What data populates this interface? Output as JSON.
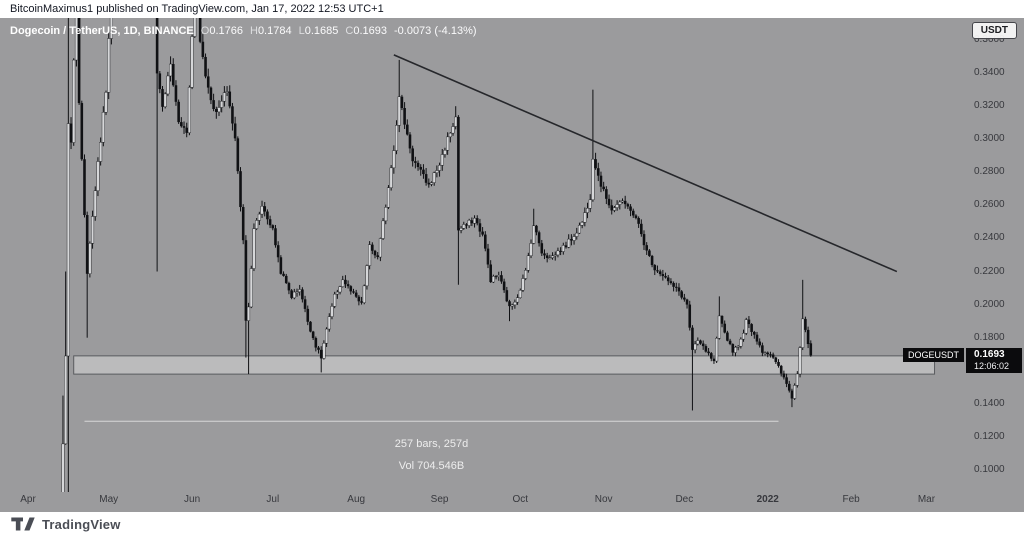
{
  "header": {
    "byline": "BitcoinMaximus1 published on TradingView.com, Jan 17, 2022 12:53 UTC+1"
  },
  "legend": {
    "title": "Dogecoin / TetherUS, 1D, BINANCE",
    "open_label": "O",
    "open": "0.1766",
    "high_label": "H",
    "high": "0.1784",
    "low_label": "L",
    "low": "0.1685",
    "close_label": "C",
    "close": "0.1693",
    "change": "-0.0073 (-4.13%)"
  },
  "price_axis": {
    "currency_label": "USDT",
    "symbol_tag": "DOGEUSDT",
    "last_price": "0.1693",
    "countdown": "12:06:02"
  },
  "annotations": {
    "bars": "257 bars, 257d",
    "volume": "Vol 704.546B"
  },
  "footer": {
    "brand": "TradingView"
  },
  "chart_data": {
    "type": "candlestick",
    "title": "Dogecoin / TetherUS, 1D, BINANCE",
    "pair": "DOGE/USDT",
    "interval": "1D",
    "exchange": "BINANCE",
    "current_bar": {
      "open": 0.1766,
      "high": 0.1784,
      "low": 0.1685,
      "close": 0.1693,
      "change": -0.0073,
      "change_pct": -4.13
    },
    "y_axis": {
      "visible_min": 0.097,
      "visible_max": 0.357,
      "ticks": [
        0.36,
        0.34,
        0.32,
        0.3,
        0.28,
        0.26,
        0.24,
        0.22,
        0.2,
        0.18,
        0.16,
        0.14,
        0.12,
        0.1
      ]
    },
    "x_axis": {
      "start_label": "Apr",
      "month_labels": [
        {
          "label": "Apr",
          "day": 0
        },
        {
          "label": "May",
          "day": 30
        },
        {
          "label": "Jun",
          "day": 61
        },
        {
          "label": "Jul",
          "day": 91
        },
        {
          "label": "Aug",
          "day": 122
        },
        {
          "label": "Sep",
          "day": 153
        },
        {
          "label": "Oct",
          "day": 183
        },
        {
          "label": "Nov",
          "day": 214
        },
        {
          "label": "Dec",
          "day": 244
        },
        {
          "label": "2022",
          "day": 275,
          "year": true
        },
        {
          "label": "Feb",
          "day": 306
        },
        {
          "label": "Mar",
          "day": 334
        }
      ]
    },
    "price_keyframes": [
      [
        0,
        0.054,
        null,
        null
      ],
      [
        6,
        0.058,
        null,
        null
      ],
      [
        12,
        0.072,
        null,
        null
      ],
      [
        13,
        0.115,
        0.145,
        null
      ],
      [
        14,
        0.17,
        0.22,
        null
      ],
      [
        15,
        0.31,
        0.45,
        0.085
      ],
      [
        16,
        0.3,
        null,
        null
      ],
      [
        18,
        0.4,
        0.42,
        null
      ],
      [
        19,
        0.32,
        null,
        null
      ],
      [
        22,
        0.22,
        null,
        0.18
      ],
      [
        25,
        0.27,
        null,
        null
      ],
      [
        29,
        0.33,
        null,
        null
      ],
      [
        32,
        0.43,
        null,
        null
      ],
      [
        35,
        0.57,
        null,
        null
      ],
      [
        37,
        0.66,
        0.74,
        null
      ],
      [
        39,
        0.52,
        null,
        null
      ],
      [
        42,
        0.49,
        null,
        null
      ],
      [
        45,
        0.52,
        0.58,
        null
      ],
      [
        48,
        0.34,
        null,
        0.22
      ],
      [
        50,
        0.32,
        null,
        null
      ],
      [
        53,
        0.345,
        null,
        null
      ],
      [
        56,
        0.31,
        null,
        null
      ],
      [
        59,
        0.305,
        null,
        null
      ],
      [
        62,
        0.39,
        0.43,
        null
      ],
      [
        64,
        0.36,
        null,
        null
      ],
      [
        67,
        0.33,
        null,
        null
      ],
      [
        70,
        0.315,
        null,
        null
      ],
      [
        74,
        0.33,
        null,
        null
      ],
      [
        77,
        0.3,
        null,
        null
      ],
      [
        80,
        0.24,
        null,
        null
      ],
      [
        81,
        0.19,
        null,
        0.168
      ],
      [
        82,
        0.2,
        null,
        0.158
      ],
      [
        84,
        0.245,
        null,
        null
      ],
      [
        87,
        0.26,
        null,
        null
      ],
      [
        91,
        0.245,
        null,
        null
      ],
      [
        94,
        0.22,
        null,
        null
      ],
      [
        98,
        0.205,
        null,
        null
      ],
      [
        101,
        0.21,
        null,
        null
      ],
      [
        104,
        0.19,
        null,
        null
      ],
      [
        107,
        0.175,
        null,
        null
      ],
      [
        109,
        0.168,
        null,
        0.159
      ],
      [
        111,
        0.185,
        null,
        null
      ],
      [
        114,
        0.205,
        null,
        null
      ],
      [
        117,
        0.215,
        null,
        null
      ],
      [
        120,
        0.208,
        null,
        null
      ],
      [
        124,
        0.2,
        null,
        null
      ],
      [
        127,
        0.235,
        null,
        null
      ],
      [
        130,
        0.228,
        null,
        null
      ],
      [
        133,
        0.26,
        null,
        null
      ],
      [
        136,
        0.295,
        null,
        null
      ],
      [
        138,
        0.325,
        0.348,
        null
      ],
      [
        140,
        0.31,
        null,
        null
      ],
      [
        143,
        0.288,
        null,
        null
      ],
      [
        146,
        0.28,
        null,
        null
      ],
      [
        149,
        0.272,
        null,
        null
      ],
      [
        153,
        0.285,
        null,
        null
      ],
      [
        156,
        0.3,
        null,
        null
      ],
      [
        159,
        0.313,
        0.32,
        null
      ],
      [
        160,
        0.245,
        null,
        0.212
      ],
      [
        163,
        0.248,
        null,
        null
      ],
      [
        166,
        0.252,
        null,
        null
      ],
      [
        169,
        0.242,
        null,
        null
      ],
      [
        172,
        0.215,
        null,
        null
      ],
      [
        175,
        0.218,
        null,
        null
      ],
      [
        179,
        0.198,
        null,
        0.19
      ],
      [
        182,
        0.205,
        null,
        null
      ],
      [
        185,
        0.22,
        null,
        null
      ],
      [
        188,
        0.248,
        0.258,
        null
      ],
      [
        191,
        0.232,
        null,
        null
      ],
      [
        194,
        0.228,
        null,
        null
      ],
      [
        197,
        0.232,
        null,
        null
      ],
      [
        200,
        0.236,
        null,
        null
      ],
      [
        203,
        0.242,
        null,
        null
      ],
      [
        206,
        0.25,
        null,
        null
      ],
      [
        209,
        0.265,
        null,
        null
      ],
      [
        210,
        0.29,
        0.33,
        null
      ],
      [
        212,
        0.278,
        null,
        null
      ],
      [
        214,
        0.268,
        null,
        null
      ],
      [
        217,
        0.258,
        null,
        null
      ],
      [
        220,
        0.262,
        null,
        null
      ],
      [
        224,
        0.258,
        null,
        null
      ],
      [
        227,
        0.248,
        null,
        null
      ],
      [
        230,
        0.232,
        null,
        null
      ],
      [
        233,
        0.222,
        null,
        null
      ],
      [
        236,
        0.218,
        null,
        null
      ],
      [
        239,
        0.212,
        null,
        null
      ],
      [
        242,
        0.208,
        null,
        null
      ],
      [
        245,
        0.2,
        null,
        null
      ],
      [
        247,
        0.172,
        null,
        0.136
      ],
      [
        249,
        0.178,
        null,
        null
      ],
      [
        252,
        0.172,
        null,
        null
      ],
      [
        255,
        0.165,
        null,
        null
      ],
      [
        257,
        0.192,
        0.205,
        null
      ],
      [
        259,
        0.183,
        null,
        null
      ],
      [
        262,
        0.172,
        null,
        null
      ],
      [
        265,
        0.178,
        null,
        null
      ],
      [
        267,
        0.19,
        null,
        null
      ],
      [
        270,
        0.182,
        null,
        null
      ],
      [
        273,
        0.172,
        null,
        null
      ],
      [
        276,
        0.17,
        null,
        null
      ],
      [
        279,
        0.162,
        null,
        null
      ],
      [
        282,
        0.152,
        null,
        null
      ],
      [
        284,
        0.144,
        null,
        0.138
      ],
      [
        286,
        0.158,
        null,
        null
      ],
      [
        288,
        0.192,
        0.215,
        null
      ],
      [
        289,
        0.186,
        null,
        null
      ],
      [
        290,
        0.177,
        null,
        null
      ],
      [
        291,
        0.1693,
        0.1784,
        0.1685
      ]
    ],
    "trendline": {
      "from": {
        "day": 136,
        "price": 0.351
      },
      "to": {
        "day": 323,
        "price": 0.22
      }
    },
    "support_zone": {
      "price_top": 0.169,
      "price_bottom": 0.158,
      "from_day": 17,
      "to_day": 337
    },
    "measure": {
      "price": 0.1295,
      "from_day": 21,
      "to_day": 279
    },
    "colors": {
      "background": "#9b9b9d",
      "up": "#d6d7d9",
      "down": "#101114",
      "wick": "#101114",
      "trendline": "#26272b",
      "zone_fill": "rgba(255,255,255,0.32)",
      "zone_border": "rgba(56,58,62,0.7)",
      "measure_line": "rgba(255,255,255,0.6)",
      "badge_bg": "#0b0b0d",
      "badge_text": "#ffffff"
    }
  }
}
